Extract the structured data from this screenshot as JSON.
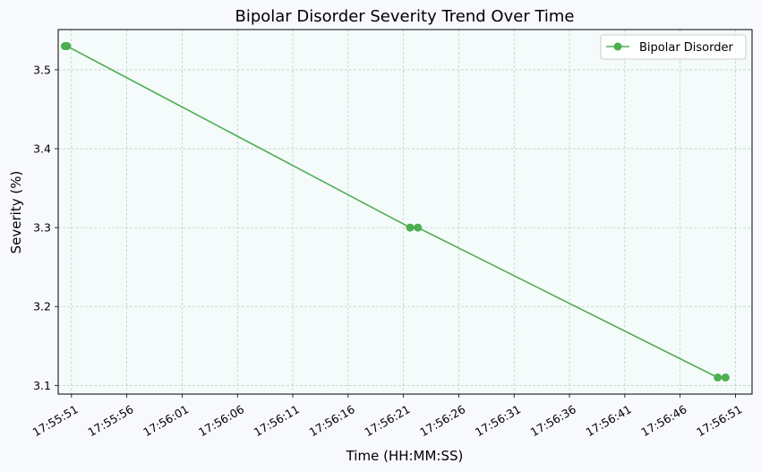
{
  "chart_data": {
    "type": "line",
    "title": "Bipolar Disorder Severity Trend Over Time",
    "xlabel": "Time (HH:MM:SS)",
    "ylabel": "Severity (%)",
    "x_ticks": [
      "17:55:51",
      "17:55:56",
      "17:56:01",
      "17:56:06",
      "17:56:11",
      "17:56:16",
      "17:56:21",
      "17:56:26",
      "17:56:31",
      "17:56:36",
      "17:56:41",
      "17:56:46",
      "17:56:51"
    ],
    "y_ticks": [
      3.1,
      3.2,
      3.3,
      3.4,
      3.5
    ],
    "xlim": [
      "17:55:49.8",
      "17:56:52.5"
    ],
    "ylim": [
      3.089,
      3.551
    ],
    "grid": true,
    "legend_position": "top-right",
    "series": [
      {
        "name": "Bipolar Disorder",
        "color": "#4caf50",
        "points": [
          {
            "x": "17:55:50.4",
            "y": 3.53
          },
          {
            "x": "17:55:50.6",
            "y": 3.53
          },
          {
            "x": "17:56:21.6",
            "y": 3.3
          },
          {
            "x": "17:56:22.3",
            "y": 3.3
          },
          {
            "x": "17:56:49.4",
            "y": 3.11
          },
          {
            "x": "17:56:50.1",
            "y": 3.11
          }
        ]
      }
    ]
  }
}
